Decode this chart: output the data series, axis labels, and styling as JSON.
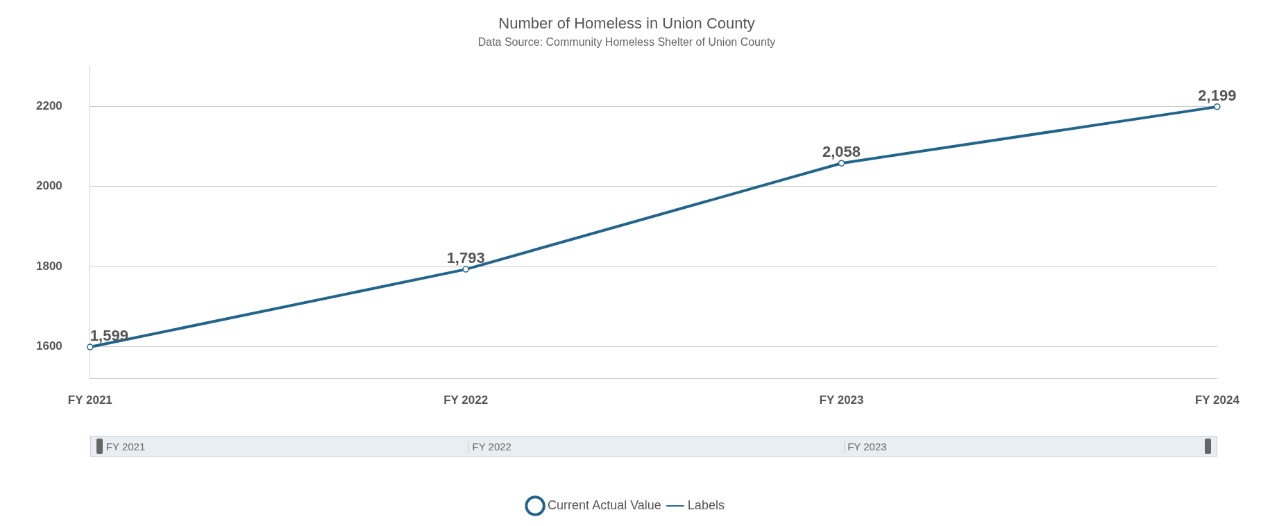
{
  "chart_data": {
    "type": "line",
    "title": "Number of Homeless in Union County",
    "subtitle": "Data Source: Community Homeless Shelter of Union County",
    "categories": [
      "FY 2021",
      "FY 2022",
      "FY 2023",
      "FY 2024"
    ],
    "series": [
      {
        "name": "Current Actual Value",
        "color": "#23648a",
        "values": [
          1599,
          1793,
          2058,
          2199
        ],
        "value_labels": [
          "1,599",
          "1,793",
          "2,058",
          "2,199"
        ],
        "marker": "circle"
      },
      {
        "name": "Labels",
        "color": "#2a6a8c",
        "values": [
          null,
          null,
          null,
          null
        ],
        "marker": "none"
      }
    ],
    "ylim": [
      1520,
      2300
    ],
    "yticks": [
      1600,
      1800,
      2000,
      2200
    ],
    "grid": "y",
    "legend": "bottom"
  }
}
